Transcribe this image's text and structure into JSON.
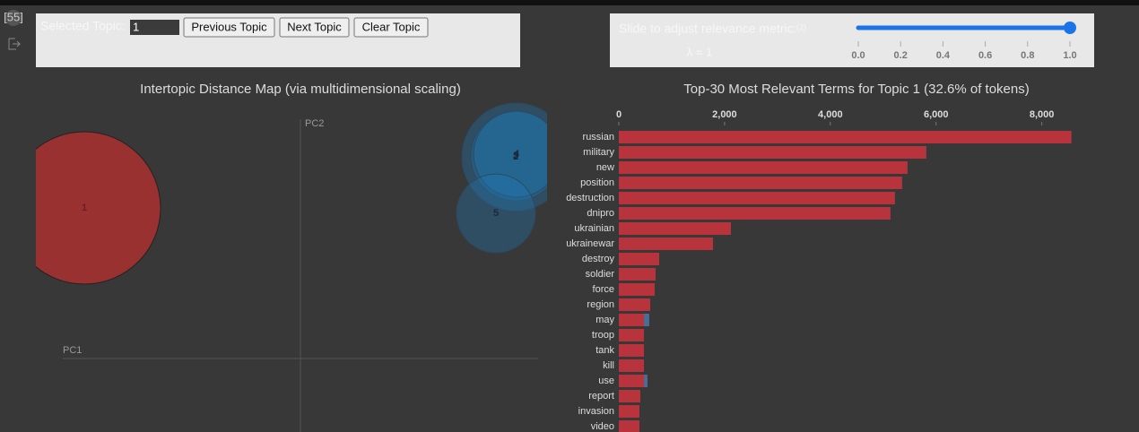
{
  "cell": {
    "prompt": "[55]"
  },
  "controls": {
    "topic_label": "Selected Topic:",
    "topic_value": "1",
    "buttons": [
      "Previous Topic",
      "Next Topic",
      "Clear Topic"
    ],
    "slider_label": "Slide to adjust relevance metric:",
    "slider_note": "(2)",
    "lambda_label": "λ = 1",
    "slider_value": 1,
    "slider_lim": [
      0,
      1
    ],
    "slider_ticks": [
      {
        "value": 0,
        "label": "0.0"
      },
      {
        "value": 0.2,
        "label": "0.2"
      },
      {
        "value": 0.4,
        "label": "0.4"
      },
      {
        "value": 0.6,
        "label": "0.6"
      },
      {
        "value": 0.8,
        "label": "0.8"
      },
      {
        "value": 1,
        "label": "1.0"
      }
    ]
  },
  "topic_map": {
    "type": "scatter",
    "title": "Intertopic Distance Map (via multidimensional scaling)",
    "x_label": "PC1",
    "y_label": "PC2",
    "xlim": [
      -2.95,
      2.65
    ],
    "ylim": [
      -0.82,
      2.85
    ],
    "topics": [
      {
        "label": "1",
        "x": -2.41,
        "y": 1.68,
        "size": 32.6,
        "color": "#9a3131"
      },
      {
        "label": "2",
        "x": 2.4,
        "y": 2.25,
        "size": 16.2,
        "color": "#1f77b4"
      },
      {
        "label": "3",
        "x": 2.4,
        "y": 2.26,
        "size": 11.3,
        "color": "#1f77b4"
      },
      {
        "label": "4",
        "x": 2.41,
        "y": 2.28,
        "size": 10.4,
        "color": "#1f77b4"
      },
      {
        "label": "5",
        "x": 2.18,
        "y": 1.62,
        "size": 8.7,
        "color": "#1f77b4"
      }
    ]
  },
  "term_chart": {
    "type": "bar",
    "title": "Top-30 Most Relevant Terms for Topic 1 (32.6% of tokens)",
    "categories": [
      "russian",
      "military",
      "new",
      "position",
      "destruction",
      "dnipro",
      "ukrainian",
      "ukrainewar",
      "destroy",
      "soldier",
      "force",
      "region",
      "may",
      "troop",
      "tank",
      "kill",
      "use",
      "report",
      "invasion",
      "video"
    ],
    "series": [
      {
        "color": "#4a6d96",
        "values": [
          8559,
          5814,
          5458,
          5356,
          5220,
          5136,
          2119,
          1780,
          763,
          695,
          678,
          593,
          576,
          475,
          475,
          475,
          542,
          407,
          390,
          390
        ]
      },
      {
        "color": "#b8333b",
        "values": [
          8559,
          5814,
          5458,
          5356,
          5220,
          5136,
          2119,
          1780,
          763,
          695,
          678,
          593,
          475,
          475,
          475,
          475,
          475,
          407,
          390,
          390
        ]
      }
    ],
    "xlim": [
      0,
      8600
    ],
    "xticks": [
      0,
      {
        "value": 2000,
        "label": "2,000"
      },
      {
        "value": 4000,
        "label": "4,000"
      },
      {
        "value": 6000,
        "label": "6,000"
      },
      {
        "value": 8000,
        "label": "8,000"
      }
    ]
  }
}
